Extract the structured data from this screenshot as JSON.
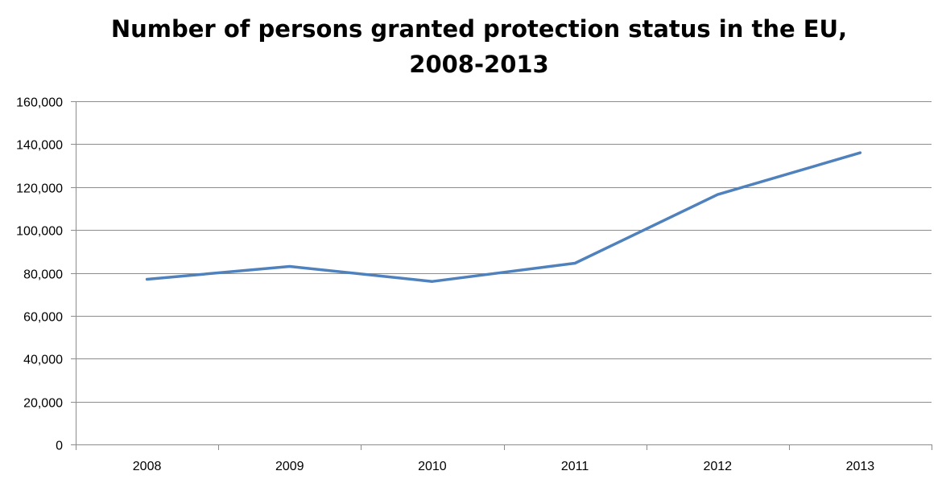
{
  "chart_data": {
    "type": "line",
    "title_lines": [
      "Number of persons granted protection status in the EU,",
      "2008-2013"
    ],
    "xlabel": "",
    "ylabel": "",
    "categories": [
      "2008",
      "2009",
      "2010",
      "2011",
      "2012",
      "2013"
    ],
    "series": [
      {
        "values": [
          77000,
          83000,
          76000,
          84500,
          116500,
          136000
        ],
        "color": "#4F81BD"
      }
    ],
    "ylim": [
      0,
      160000
    ],
    "yticks": [
      0,
      20000,
      40000,
      60000,
      80000,
      100000,
      120000,
      140000,
      160000
    ],
    "ytick_labels": [
      "0",
      "20,000",
      "40,000",
      "60,000",
      "80,000",
      "100,000",
      "120,000",
      "140,000",
      "160,000"
    ],
    "grid": true,
    "legend": "none",
    "gridline_color": "#8C8C8C",
    "axis_color": "#8C8C8C"
  }
}
